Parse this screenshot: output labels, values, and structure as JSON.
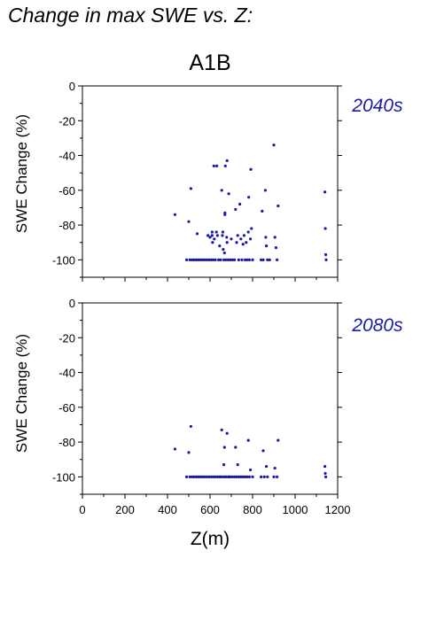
{
  "figure_title": "Change in max SWE vs. Z:",
  "scenario": "A1B",
  "accent_color": "#1a1aa6",
  "chart_data": [
    {
      "type": "scatter",
      "period": "2040s",
      "xlabel": "Z(m)",
      "ylabel": "SWE Change (%)",
      "xlim": [
        0,
        1200
      ],
      "ylim": [
        -110,
        0
      ],
      "xticks": [
        0,
        200,
        400,
        600,
        800,
        1000,
        1200
      ],
      "yticks": [
        0,
        -20,
        -40,
        -60,
        -80,
        -100
      ],
      "grid": false,
      "points": [
        [
          435,
          -74
        ],
        [
          490,
          -100
        ],
        [
          500,
          -78
        ],
        [
          505,
          -100
        ],
        [
          510,
          -59
        ],
        [
          515,
          -100
        ],
        [
          525,
          -100
        ],
        [
          535,
          -100
        ],
        [
          540,
          -85
        ],
        [
          545,
          -100
        ],
        [
          555,
          -100
        ],
        [
          565,
          -100
        ],
        [
          575,
          -100
        ],
        [
          585,
          -100
        ],
        [
          590,
          -86
        ],
        [
          595,
          -100
        ],
        [
          600,
          -87
        ],
        [
          605,
          -100
        ],
        [
          610,
          -84
        ],
        [
          610,
          -86
        ],
        [
          612,
          -90
        ],
        [
          615,
          -100
        ],
        [
          618,
          -46
        ],
        [
          620,
          -88
        ],
        [
          625,
          -100
        ],
        [
          630,
          -84
        ],
        [
          632,
          -46
        ],
        [
          635,
          -86
        ],
        [
          640,
          -100
        ],
        [
          645,
          -92
        ],
        [
          650,
          -100
        ],
        [
          655,
          -60
        ],
        [
          658,
          -86
        ],
        [
          660,
          -84
        ],
        [
          662,
          -94
        ],
        [
          665,
          -100
        ],
        [
          668,
          -96
        ],
        [
          670,
          -73
        ],
        [
          670,
          -74
        ],
        [
          672,
          -46
        ],
        [
          675,
          -100
        ],
        [
          678,
          -87
        ],
        [
          680,
          -43
        ],
        [
          680,
          -90
        ],
        [
          685,
          -100
        ],
        [
          688,
          -62
        ],
        [
          695,
          -100
        ],
        [
          700,
          -88
        ],
        [
          705,
          -100
        ],
        [
          715,
          -100
        ],
        [
          720,
          -71
        ],
        [
          725,
          -90
        ],
        [
          730,
          -86
        ],
        [
          735,
          -100
        ],
        [
          740,
          -68
        ],
        [
          745,
          -88
        ],
        [
          750,
          -100
        ],
        [
          755,
          -91
        ],
        [
          760,
          -86
        ],
        [
          765,
          -100
        ],
        [
          770,
          -90
        ],
        [
          775,
          -100
        ],
        [
          780,
          -84
        ],
        [
          782,
          -64
        ],
        [
          785,
          -100
        ],
        [
          790,
          -88
        ],
        [
          792,
          -48
        ],
        [
          795,
          -82
        ],
        [
          800,
          -100
        ],
        [
          840,
          -100
        ],
        [
          845,
          -72
        ],
        [
          850,
          -100
        ],
        [
          860,
          -60
        ],
        [
          862,
          -87
        ],
        [
          865,
          -92
        ],
        [
          870,
          -100
        ],
        [
          880,
          -100
        ],
        [
          900,
          -34
        ],
        [
          905,
          -87
        ],
        [
          910,
          -93
        ],
        [
          915,
          -100
        ],
        [
          920,
          -69
        ],
        [
          1140,
          -61
        ],
        [
          1142,
          -82
        ],
        [
          1144,
          -97
        ],
        [
          1146,
          -100
        ]
      ]
    },
    {
      "type": "scatter",
      "period": "2080s",
      "xlabel": "Z(m)",
      "ylabel": "SWE Change (%)",
      "xlim": [
        0,
        1200
      ],
      "ylim": [
        -110,
        0
      ],
      "xticks": [
        0,
        200,
        400,
        600,
        800,
        1000,
        1200
      ],
      "yticks": [
        0,
        -20,
        -40,
        -60,
        -80,
        -100
      ],
      "grid": false,
      "points": [
        [
          435,
          -84
        ],
        [
          490,
          -100
        ],
        [
          500,
          -86
        ],
        [
          505,
          -100
        ],
        [
          510,
          -71
        ],
        [
          515,
          -100
        ],
        [
          525,
          -100
        ],
        [
          535,
          -100
        ],
        [
          545,
          -100
        ],
        [
          555,
          -100
        ],
        [
          565,
          -100
        ],
        [
          575,
          -100
        ],
        [
          585,
          -100
        ],
        [
          595,
          -100
        ],
        [
          605,
          -100
        ],
        [
          615,
          -100
        ],
        [
          625,
          -100
        ],
        [
          635,
          -100
        ],
        [
          645,
          -100
        ],
        [
          650,
          -100
        ],
        [
          655,
          -73
        ],
        [
          660,
          -100
        ],
        [
          665,
          -93
        ],
        [
          668,
          -83
        ],
        [
          670,
          -100
        ],
        [
          675,
          -100
        ],
        [
          680,
          -75
        ],
        [
          685,
          -100
        ],
        [
          690,
          -100
        ],
        [
          695,
          -100
        ],
        [
          705,
          -100
        ],
        [
          715,
          -100
        ],
        [
          720,
          -83
        ],
        [
          725,
          -100
        ],
        [
          730,
          -93
        ],
        [
          735,
          -100
        ],
        [
          745,
          -100
        ],
        [
          755,
          -100
        ],
        [
          765,
          -100
        ],
        [
          775,
          -100
        ],
        [
          780,
          -79
        ],
        [
          785,
          -100
        ],
        [
          790,
          -96
        ],
        [
          800,
          -100
        ],
        [
          840,
          -100
        ],
        [
          850,
          -85
        ],
        [
          855,
          -100
        ],
        [
          865,
          -94
        ],
        [
          870,
          -100
        ],
        [
          900,
          -100
        ],
        [
          905,
          -95
        ],
        [
          915,
          -100
        ],
        [
          920,
          -79
        ],
        [
          1140,
          -94
        ],
        [
          1142,
          -98
        ],
        [
          1144,
          -100
        ]
      ]
    }
  ]
}
